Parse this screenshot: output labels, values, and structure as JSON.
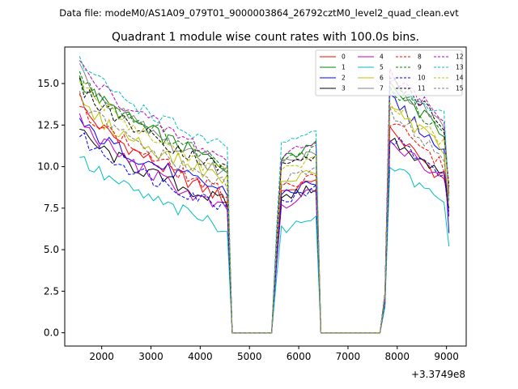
{
  "chart_data": {
    "type": "line",
    "suptitle": "Data file: modeM0/AS1A09_079T01_9000003864_26792cztM0_level2_quad_clean.evt",
    "title": "Quadrant 1 module wise count rates with 100.0s bins.",
    "xlabel": "",
    "ylabel": "",
    "offset_label": "+3.3749e8",
    "xlim": [
      1250,
      9400
    ],
    "ylim": [
      -0.8,
      17.2
    ],
    "xticks": [
      2000,
      3000,
      4000,
      5000,
      6000,
      7000,
      8000,
      9000
    ],
    "yticks": [
      0.0,
      2.5,
      5.0,
      7.5,
      10.0,
      12.5,
      15.0
    ],
    "ytick_labels": [
      "0.0",
      "2.5",
      "5.0",
      "7.5",
      "10.0",
      "12.5",
      "15.0"
    ],
    "bin_width": 100,
    "segments": [
      {
        "x_start": 1550,
        "x_end": 4550
      },
      {
        "x_start": 5550,
        "x_end": 6350
      },
      {
        "x_start": 7750,
        "x_end": 9050
      }
    ],
    "gaps": [
      {
        "x": [
          4650,
          4750,
          4850,
          4950,
          5050,
          5150,
          5250,
          5350,
          5450
        ],
        "value": 0
      },
      {
        "x": [
          6450,
          6550,
          6650,
          6750,
          6850,
          6950,
          7050,
          7150,
          7250,
          7350,
          7450,
          7550,
          7650
        ],
        "value": 0
      }
    ],
    "series": [
      {
        "name": "0",
        "color": "#ff0000",
        "dash": "solid",
        "seg_start": [
          13.9,
          8.0
        ],
        "seg2": [
          8.3,
          9.2
        ],
        "seg3_start": 12.5,
        "seg3_end": 8.9,
        "end": 8.0
      },
      {
        "name": "1",
        "color": "#008000",
        "dash": "solid",
        "seg_start": [
          15.4,
          10.0
        ],
        "seg2": [
          10.3,
          11.3
        ],
        "seg3_start": 15.0,
        "seg3_end": 11.8,
        "end": 8.5
      },
      {
        "name": "2",
        "color": "#0000ff",
        "dash": "solid",
        "seg_start": [
          12.8,
          8.5
        ],
        "seg2": [
          8.3,
          9.0
        ],
        "seg3_start": 14.5,
        "seg3_end": 10.5,
        "end": 6.0
      },
      {
        "name": "3",
        "color": "#000000",
        "dash": "solid",
        "seg_start": [
          12.2,
          7.8
        ],
        "seg2": [
          7.9,
          8.8
        ],
        "seg3_start": 11.8,
        "seg3_end": 9.5,
        "end": 7.5
      },
      {
        "name": "4",
        "color": "#bf00bf",
        "dash": "solid",
        "seg_start": [
          13.0,
          7.3
        ],
        "seg2": [
          7.5,
          8.7
        ],
        "seg3_start": 11.5,
        "seg3_end": 9.3,
        "end": 7.0
      },
      {
        "name": "5",
        "color": "#00bfbf",
        "dash": "solid",
        "seg_start": [
          10.7,
          6.3
        ],
        "seg2": [
          6.0,
          7.1
        ],
        "seg3_start": 10.3,
        "seg3_end": 7.5,
        "end": 5.2
      },
      {
        "name": "6",
        "color": "#bfbf00",
        "dash": "solid",
        "seg_start": [
          14.0,
          9.2
        ],
        "seg2": [
          8.8,
          9.8
        ],
        "seg3_start": 13.8,
        "seg3_end": 10.8,
        "end": 7.6
      },
      {
        "name": "7",
        "color": "#808080",
        "dash": "solid",
        "seg_start": [
          15.8,
          9.6
        ],
        "seg2": [
          10.1,
          10.8
        ],
        "seg3_start": 15.5,
        "seg3_end": 12.2,
        "end": 8.2
      },
      {
        "name": "8",
        "color": "#ff0000",
        "dash": "dashed",
        "seg_start": [
          14.0,
          8.3
        ],
        "seg2": [
          8.6,
          9.4
        ],
        "seg3_start": 13.0,
        "seg3_end": 9.8,
        "end": 8.2
      },
      {
        "name": "9",
        "color": "#008000",
        "dash": "dashed",
        "seg_start": [
          15.6,
          10.2
        ],
        "seg2": [
          10.2,
          11.0
        ],
        "seg3_start": 15.2,
        "seg3_end": 11.6,
        "end": 8.8
      },
      {
        "name": "10",
        "color": "#0000ff",
        "dash": "dashed",
        "seg_start": [
          12.0,
          7.6
        ],
        "seg2": [
          7.8,
          8.6
        ],
        "seg3_start": 12.0,
        "seg3_end": 9.2,
        "end": 7.2
      },
      {
        "name": "11",
        "color": "#000000",
        "dash": "dashed",
        "seg_start": [
          15.0,
          9.8
        ],
        "seg2": [
          9.9,
          10.7
        ],
        "seg3_start": 15.8,
        "seg3_end": 12.3,
        "end": 8.8
      },
      {
        "name": "12",
        "color": "#bf00bf",
        "dash": "dashed",
        "seg_start": [
          16.3,
          10.4
        ],
        "seg2": [
          10.5,
          11.4
        ],
        "seg3_start": 15.8,
        "seg3_end": 12.6,
        "end": 8.4
      },
      {
        "name": "13",
        "color": "#00bfbf",
        "dash": "dashed",
        "seg_start": [
          16.5,
          11.0
        ],
        "seg2": [
          11.3,
          12.2
        ],
        "seg3_start": 14.8,
        "seg3_end": 13.0,
        "end": 8.0
      },
      {
        "name": "14",
        "color": "#bfbf00",
        "dash": "dashed",
        "seg_start": [
          15.3,
          9.5
        ],
        "seg2": [
          9.5,
          10.5
        ],
        "seg3_start": 14.2,
        "seg3_end": 11.2,
        "end": 8.3
      },
      {
        "name": "15",
        "color": "#808080",
        "dash": "dashed",
        "seg_start": [
          14.2,
          8.8
        ],
        "seg2": [
          9.0,
          9.9
        ],
        "seg3_start": 13.5,
        "seg3_end": 10.4,
        "end": 7.9
      }
    ],
    "legend_position": "top-right"
  }
}
